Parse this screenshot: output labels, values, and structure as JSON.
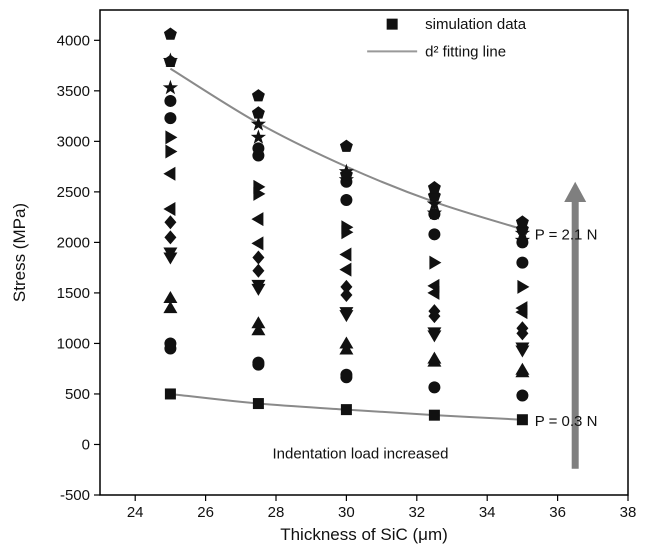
{
  "chart_data": {
    "type": "scatter",
    "title": "",
    "xlabel": "Thickness of SiC (μm)",
    "ylabel": "Stress (MPa)",
    "xlim": [
      23,
      38
    ],
    "ylim": [
      -500,
      4300
    ],
    "x_ticks": [
      24,
      26,
      28,
      30,
      32,
      34,
      36,
      38
    ],
    "y_ticks": [
      -500,
      0,
      500,
      1000,
      1500,
      2000,
      2500,
      3000,
      3500,
      4000
    ],
    "legend": {
      "placement": "top-right",
      "entries": [
        {
          "label": "simulation data",
          "marker": "square"
        },
        {
          "label": "d² fitting line",
          "marker": "line"
        }
      ]
    },
    "series": [
      {
        "values": [
          [
            25,
            500
          ],
          [
            27.5,
            405
          ],
          [
            30,
            345
          ],
          [
            32.5,
            290
          ],
          [
            35,
            245
          ]
        ],
        "marker": "square"
      },
      {
        "values": [
          [
            25,
            950
          ],
          [
            27.5,
            790
          ],
          [
            30,
            665
          ],
          [
            32.5,
            565
          ],
          [
            35,
            485
          ]
        ],
        "marker": "circle"
      },
      {
        "values": [
          [
            25,
            1000
          ],
          [
            27.5,
            810
          ],
          [
            30,
            690
          ]
        ],
        "marker": "circle"
      },
      {
        "values": [
          [
            25,
            1350
          ],
          [
            27.5,
            1130
          ],
          [
            30,
            940
          ],
          [
            32.5,
            820
          ],
          [
            35,
            715
          ]
        ],
        "marker": "triangle-up"
      },
      {
        "values": [
          [
            25,
            1450
          ],
          [
            27.5,
            1200
          ],
          [
            30,
            1000
          ],
          [
            32.5,
            850
          ],
          [
            35,
            740
          ]
        ],
        "marker": "triangle-up"
      },
      {
        "values": [
          [
            25,
            1850
          ],
          [
            27.5,
            1540
          ],
          [
            30,
            1280
          ],
          [
            32.5,
            1080
          ],
          [
            35,
            930
          ]
        ],
        "marker": "triangle-down"
      },
      {
        "values": [
          [
            25,
            1900
          ],
          [
            27.5,
            1580
          ],
          [
            30,
            1310
          ],
          [
            32.5,
            1110
          ],
          [
            35,
            960
          ]
        ],
        "marker": "triangle-down"
      },
      {
        "values": [
          [
            25,
            2050
          ],
          [
            27.5,
            1720
          ],
          [
            30,
            1480
          ],
          [
            32.5,
            1270
          ],
          [
            35,
            1100
          ]
        ],
        "marker": "diamond"
      },
      {
        "values": [
          [
            25,
            2200
          ],
          [
            27.5,
            1850
          ],
          [
            30,
            1560
          ],
          [
            32.5,
            1320
          ],
          [
            35,
            1150
          ]
        ],
        "marker": "diamond"
      },
      {
        "values": [
          [
            25,
            2330
          ],
          [
            27.5,
            1990
          ],
          [
            30,
            1730
          ],
          [
            32.5,
            1500
          ],
          [
            35,
            1310
          ]
        ],
        "marker": "triangle-left"
      },
      {
        "values": [
          [
            25,
            2680
          ],
          [
            27.5,
            2230
          ],
          [
            30,
            1880
          ],
          [
            32.5,
            1570
          ],
          [
            35,
            1350
          ]
        ],
        "marker": "triangle-left"
      },
      {
        "values": [
          [
            25,
            2900
          ],
          [
            27.5,
            2480
          ],
          [
            30,
            2100
          ],
          [
            32.5,
            1800
          ],
          [
            35,
            1560
          ]
        ],
        "marker": "triangle-right"
      },
      {
        "values": [
          [
            25,
            3040
          ],
          [
            27.5,
            2550
          ],
          [
            30,
            2150
          ]
        ],
        "marker": "triangle-right"
      },
      {
        "values": [
          [
            25,
            3230
          ],
          [
            27.5,
            2860
          ],
          [
            30,
            2420
          ],
          [
            32.5,
            2080
          ],
          [
            35,
            1800
          ]
        ],
        "marker": "circle"
      },
      {
        "values": [
          [
            25,
            3400
          ],
          [
            27.5,
            2930
          ],
          [
            30,
            2600
          ],
          [
            32.5,
            2280
          ],
          [
            35,
            2000
          ]
        ],
        "marker": "circle"
      },
      {
        "values": [
          [
            25,
            3530
          ],
          [
            27.5,
            3040
          ],
          [
            30,
            2620
          ],
          [
            32.5,
            2290
          ],
          [
            35,
            2020
          ]
        ],
        "marker": "star"
      },
      {
        "values": [
          [
            25,
            3800
          ],
          [
            27.5,
            3170
          ],
          [
            30,
            2700
          ],
          [
            32.5,
            2380
          ],
          [
            35,
            2090
          ]
        ],
        "marker": "star"
      },
      {
        "values": [
          [
            25,
            3790
          ],
          [
            27.5,
            3280
          ],
          [
            30,
            2670
          ],
          [
            32.5,
            2460
          ],
          [
            35,
            2130
          ]
        ],
        "marker": "pentagon"
      },
      {
        "values": [
          [
            25,
            4060
          ],
          [
            27.5,
            3450
          ],
          [
            30,
            2950
          ],
          [
            32.5,
            2540
          ],
          [
            35,
            2200
          ]
        ],
        "marker": "pentagon"
      }
    ],
    "fit_lines": [
      {
        "x": [
          25,
          27.5,
          30,
          32.5,
          35
        ],
        "y": [
          3720,
          3180,
          2750,
          2400,
          2130
        ]
      },
      {
        "x": [
          25,
          27.5,
          30,
          32.5,
          35
        ],
        "y": [
          500,
          405,
          345,
          290,
          245
        ]
      }
    ],
    "annotations": {
      "top_label": "P = 2.1 N",
      "bottom_label": "P = 0.3 N",
      "arrow_label": "Indentation load increased"
    }
  }
}
